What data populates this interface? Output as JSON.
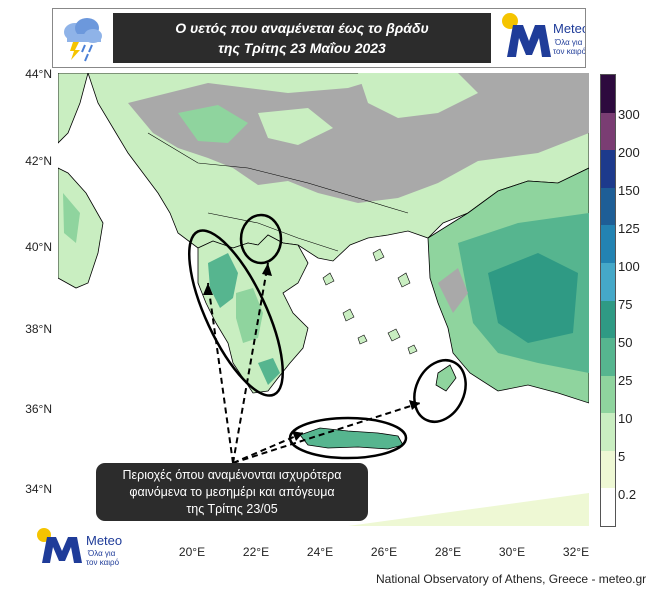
{
  "header": {
    "title_line1": "Ο υετός που αναμένεται έως το βράδυ",
    "title_line2": "της Τρίτης 23 Μαΐου 2023",
    "weather_icon": "rain-storm-cloud-icon"
  },
  "brand": {
    "name": "Meteo",
    "tagline_line1": "Όλα για",
    "tagline_line2": "τον καιρό",
    "logo_icon": "meteo-m-logo-icon",
    "colors": {
      "blue": "#1f3c99",
      "yellow": "#f5c400"
    }
  },
  "axes": {
    "latitudes": [
      "44°N",
      "42°N",
      "40°N",
      "38°N",
      "36°N",
      "34°N"
    ],
    "longitudes": [
      "20°E",
      "22°E",
      "24°E",
      "26°E",
      "28°E",
      "30°E",
      "32°E"
    ]
  },
  "colorbar": {
    "labels": [
      "300",
      "200",
      "150",
      "125",
      "100",
      "75",
      "50",
      "25",
      "10",
      "5",
      "0.2"
    ],
    "colors": [
      "#2d0a3e",
      "#7a3d73",
      "#1d3a8c",
      "#1e5e96",
      "#2383b2",
      "#45a8c8",
      "#2f9a84",
      "#56b58f",
      "#8fd49e",
      "#c9eec1",
      "#eef8d4",
      "#ffffff"
    ]
  },
  "callout": {
    "line1": "Περιοχές όπου αναμένονται ισχυρότερα",
    "line2": "φαινόμενα το μεσημέρι και απόγευμα",
    "line3": "της Τρίτης 23/05"
  },
  "footer": {
    "credit": "National Observatory of Athens, Greece - meteo.gr"
  }
}
